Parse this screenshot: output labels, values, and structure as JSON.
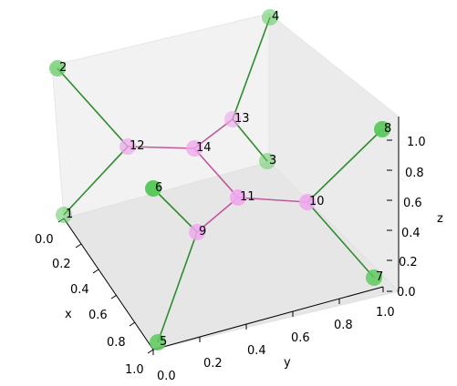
{
  "chart_data": {
    "type": "3d-graph",
    "axes": {
      "x": {
        "label": "x",
        "ticks": [
          "0.0",
          "0.2",
          "0.4",
          "0.6",
          "0.8",
          "1.0"
        ]
      },
      "y": {
        "label": "y",
        "ticks": [
          "0.0",
          "0.2",
          "0.4",
          "0.6",
          "0.8",
          "1.0"
        ]
      },
      "z": {
        "label": "z",
        "ticks": [
          "0.0",
          "0.2",
          "0.4",
          "0.6",
          "0.8",
          "1.0"
        ]
      }
    },
    "colors": {
      "green_node": "#5cc95c",
      "pink_node": "#f0a8ee",
      "green_edge": "#2e8b2e",
      "pink_edge": "#c0589e"
    },
    "nodes": [
      {
        "id": "1",
        "group": "green"
      },
      {
        "id": "2",
        "group": "green"
      },
      {
        "id": "3",
        "group": "green"
      },
      {
        "id": "4",
        "group": "green"
      },
      {
        "id": "5",
        "group": "green"
      },
      {
        "id": "6",
        "group": "green"
      },
      {
        "id": "7",
        "group": "green"
      },
      {
        "id": "8",
        "group": "green"
      },
      {
        "id": "9",
        "group": "pink"
      },
      {
        "id": "10",
        "group": "pink"
      },
      {
        "id": "11",
        "group": "pink"
      },
      {
        "id": "12",
        "group": "pink"
      },
      {
        "id": "13",
        "group": "pink"
      },
      {
        "id": "14",
        "group": "pink"
      }
    ],
    "edges": [
      {
        "source": "2",
        "target": "12",
        "type": "green"
      },
      {
        "source": "1",
        "target": "12",
        "type": "green"
      },
      {
        "source": "12",
        "target": "14",
        "type": "pink"
      },
      {
        "source": "14",
        "target": "13",
        "type": "pink"
      },
      {
        "source": "13",
        "target": "4",
        "type": "green"
      },
      {
        "source": "13",
        "target": "3",
        "type": "green"
      },
      {
        "source": "14",
        "target": "11",
        "type": "pink"
      },
      {
        "source": "11",
        "target": "9",
        "type": "pink"
      },
      {
        "source": "6",
        "target": "9",
        "type": "green"
      },
      {
        "source": "9",
        "target": "5",
        "type": "green"
      },
      {
        "source": "11",
        "target": "10",
        "type": "pink"
      },
      {
        "source": "10",
        "target": "8",
        "type": "green"
      },
      {
        "source": "10",
        "target": "7",
        "type": "green"
      }
    ]
  }
}
